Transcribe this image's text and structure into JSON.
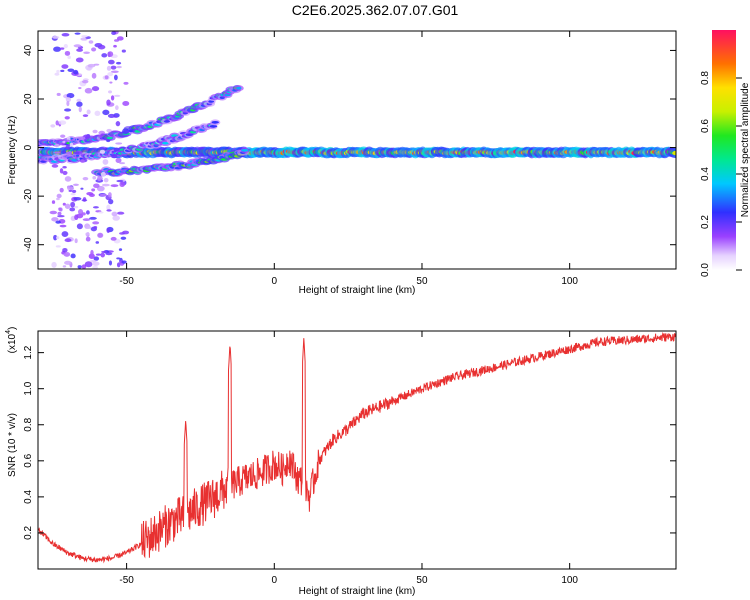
{
  "title": "C2E6.2025.362.07.07.G01",
  "chart_data": [
    {
      "type": "heatmap",
      "panel": "spectrogram",
      "xlabel": "Height of straight line (km)",
      "ylabel": "Frequency (Hz)",
      "xlim": [
        -80,
        136
      ],
      "ylim": [
        -50,
        48
      ],
      "xticks": [
        -50,
        0,
        50,
        100
      ],
      "yticks": [
        -40,
        -20,
        0,
        20,
        40
      ],
      "colorbar": {
        "label": "Normalized spectral amplitude",
        "range": [
          0,
          1
        ],
        "ticks": [
          "0.0",
          "0.2",
          "0.4",
          "0.6",
          "0.8"
        ],
        "tick_values": [
          0.0,
          0.2,
          0.4,
          0.6,
          0.8
        ]
      },
      "features": [
        {
          "name": "main-carrier",
          "x_range": [
            -78,
            136
          ],
          "frequency_hz": -2,
          "amplitude": 0.9
        },
        {
          "name": "upper-branch-a",
          "x_range": [
            -80,
            -12
          ],
          "frequency_hz_range": [
            2,
            25
          ],
          "amplitude": 0.35
        },
        {
          "name": "upper-branch-b",
          "x_range": [
            -80,
            -20
          ],
          "frequency_hz_range": [
            -5,
            10
          ],
          "amplitude": 0.3
        },
        {
          "name": "lower-branch",
          "x_range": [
            -60,
            -10
          ],
          "frequency_hz_range": [
            -10,
            -2
          ],
          "amplitude": 0.4
        },
        {
          "name": "scatter-column",
          "x_range": [
            -75,
            -50
          ],
          "frequency_hz_range": [
            -50,
            48
          ],
          "amplitude": 0.15
        }
      ]
    },
    {
      "type": "line",
      "panel": "snr",
      "xlabel": "Height of straight line (km)",
      "ylabel": "SNR (10 * v/v)",
      "scale_label": "(x10",
      "scale_exponent": "4",
      "scale_suffix": ")",
      "xlim": [
        -80,
        136
      ],
      "ylim": [
        0.0,
        1.32
      ],
      "xticks": [
        -50,
        0,
        50,
        100
      ],
      "yticks": [
        "0.2",
        "0.4",
        "0.6",
        "0.8",
        "1.0",
        "1.2"
      ],
      "ytick_values": [
        0.2,
        0.4,
        0.6,
        0.8,
        1.0,
        1.2
      ],
      "color": "#e83030",
      "x": [
        -80,
        -75,
        -70,
        -65,
        -60,
        -55,
        -50,
        -45,
        -40,
        -35,
        -30,
        -25,
        -20,
        -17,
        -15,
        -10,
        -5,
        0,
        3,
        5,
        8,
        10,
        12,
        15,
        20,
        25,
        30,
        40,
        50,
        60,
        70,
        80,
        90,
        100,
        105,
        110,
        120,
        136
      ],
      "values": [
        0.22,
        0.14,
        0.09,
        0.06,
        0.05,
        0.06,
        0.09,
        0.14,
        0.2,
        0.26,
        0.3,
        0.35,
        0.4,
        0.44,
        0.46,
        0.5,
        0.53,
        0.58,
        0.55,
        0.62,
        0.5,
        0.48,
        0.4,
        0.6,
        0.72,
        0.78,
        0.86,
        0.93,
        1.0,
        1.06,
        1.1,
        1.14,
        1.18,
        1.22,
        1.24,
        1.26,
        1.27,
        1.29
      ],
      "peaks": [
        {
          "x": -30,
          "value": 0.83
        },
        {
          "x": -15,
          "value": 1.25
        },
        {
          "x": 10,
          "value": 1.28
        }
      ]
    }
  ]
}
